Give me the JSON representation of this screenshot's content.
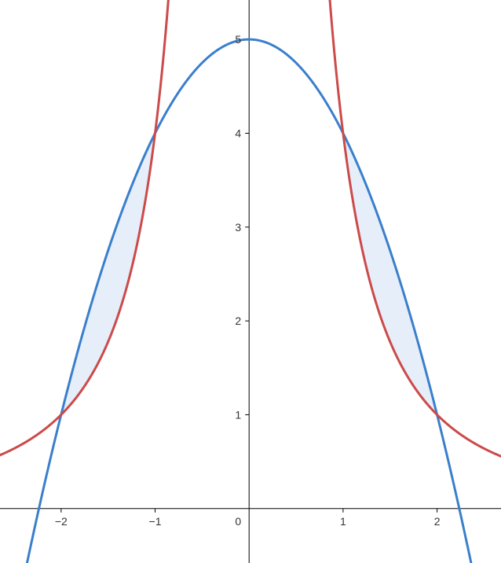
{
  "chart_data": {
    "type": "line",
    "title": "",
    "xlabel": "",
    "ylabel": "",
    "xlim": [
      -2.65,
      2.68
    ],
    "ylim": [
      -0.58,
      5.42
    ],
    "grid": false,
    "legend": "none",
    "x_ticks": [
      {
        "value": -2,
        "label": "−2"
      },
      {
        "value": -1,
        "label": "−1"
      },
      {
        "value": 1,
        "label": "1"
      },
      {
        "value": 2,
        "label": "2"
      }
    ],
    "y_ticks": [
      {
        "value": 1,
        "label": "1"
      },
      {
        "value": 2,
        "label": "2"
      },
      {
        "value": 3,
        "label": "3"
      },
      {
        "value": 4,
        "label": "4"
      },
      {
        "value": 5,
        "label": "5"
      }
    ],
    "origin_label": "0",
    "series": [
      {
        "formula": "5 - x^2",
        "color": "#3a7fcc",
        "x": [
          -2.4,
          -2,
          -1.5,
          -1,
          -0.5,
          0,
          0.5,
          1,
          1.5,
          2,
          2.4
        ],
        "y": [
          -0.76,
          1,
          2.75,
          4,
          4.75,
          5,
          4.75,
          4,
          2.75,
          1,
          -0.76
        ]
      },
      {
        "formula": "4 / x^2",
        "color": "#cc4a4a",
        "x": [
          -2.65,
          -2,
          -1.5,
          -1,
          -0.86,
          0.86,
          1,
          1.5,
          2,
          2.68
        ],
        "y": [
          0.57,
          1,
          1.78,
          4,
          5.4,
          5.4,
          4,
          1.78,
          1,
          0.56
        ]
      }
    ],
    "shaded_regions": [
      {
        "between": [
          "5 - x^2",
          "4 / x^2"
        ],
        "x_range": [
          -2,
          -1
        ],
        "color": "#e6eef9"
      },
      {
        "between": [
          "5 - x^2",
          "4 / x^2"
        ],
        "x_range": [
          1,
          2
        ],
        "color": "#e6eef9"
      }
    ]
  }
}
